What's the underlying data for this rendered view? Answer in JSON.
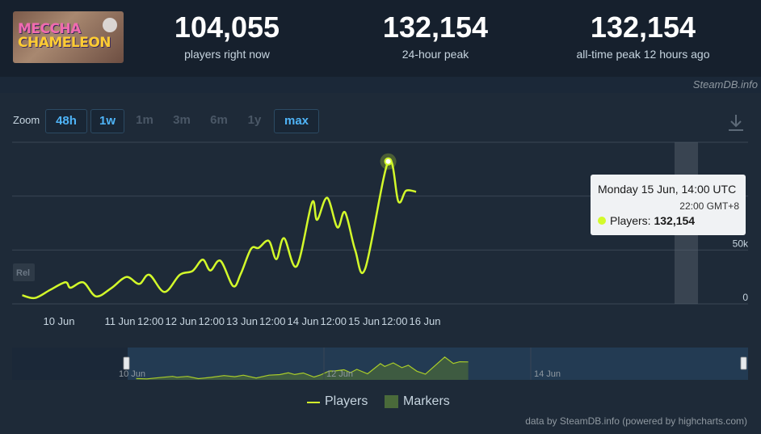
{
  "header": {
    "logo_line1": "MECCHA",
    "logo_line2": "CHAMELEON",
    "stats": [
      {
        "value": "104,055",
        "label": "players right now"
      },
      {
        "value": "132,154",
        "label": "24-hour peak"
      },
      {
        "value": "132,154",
        "label": "all-time peak 12 hours ago"
      }
    ],
    "credit": "SteamDB.info"
  },
  "zoom": {
    "label": "Zoom",
    "buttons": [
      {
        "label": "48h",
        "active": true
      },
      {
        "label": "1w",
        "active": true
      },
      {
        "label": "1m",
        "active": false
      },
      {
        "label": "3m",
        "active": false
      },
      {
        "label": "6m",
        "active": false
      },
      {
        "label": "1y",
        "active": false
      },
      {
        "label": "max",
        "active": true
      }
    ]
  },
  "chart_data": {
    "type": "line",
    "series": [
      {
        "name": "Players",
        "color": "#d3fa2a"
      }
    ],
    "x_tick_labels": [
      "10 Jun",
      "11 Jun",
      "12:00",
      "12 Jun",
      "12:00",
      "13 Jun",
      "12:00",
      "14 Jun",
      "12:00",
      "15 Jun",
      "12:00",
      "16 Jun"
    ],
    "y_tick_labels": [
      "0",
      "50k"
    ],
    "ylim": [
      0,
      150000
    ],
    "points_time_ymd_hh": [
      [
        "Jun 9 14:00",
        8000
      ],
      [
        "Jun 9 19:00",
        5500
      ],
      [
        "Jun 10 01:00",
        13000
      ],
      [
        "Jun 10 07:00",
        20000
      ],
      [
        "Jun 10 09:00",
        15000
      ],
      [
        "Jun 10 14:00",
        20000
      ],
      [
        "Jun 10 19:00",
        7000
      ],
      [
        "Jun 11 01:00",
        14500
      ],
      [
        "Jun 11 07:00",
        25000
      ],
      [
        "Jun 11 12:00",
        18500
      ],
      [
        "Jun 11 16:00",
        27000
      ],
      [
        "Jun 11 22:00",
        11000
      ],
      [
        "Jun 12 04:00",
        27000
      ],
      [
        "Jun 12 09:00",
        30500
      ],
      [
        "Jun 12 13:00",
        41000
      ],
      [
        "Jun 12 16:00",
        31000
      ],
      [
        "Jun 12 20:00",
        40000
      ],
      [
        "Jun 13 01:00",
        16500
      ],
      [
        "Jun 13 04:00",
        28000
      ],
      [
        "Jun 13 08:00",
        51000
      ],
      [
        "Jun 13 11:00",
        52000
      ],
      [
        "Jun 13 15:00",
        58500
      ],
      [
        "Jun 13 18:00",
        41500
      ],
      [
        "Jun 13 21:00",
        61000
      ],
      [
        "Jun 14 02:00",
        35000
      ],
      [
        "Jun 14 08:00",
        94000
      ],
      [
        "Jun 14 10:00",
        78000
      ],
      [
        "Jun 14 14:00",
        98500
      ],
      [
        "Jun 14 18:00",
        71000
      ],
      [
        "Jun 14 21:00",
        85000
      ],
      [
        "Jun 15 01:00",
        50000
      ],
      [
        "Jun 15 05:00",
        33000
      ],
      [
        "Jun 15 14:00",
        132154
      ],
      [
        "Jun 15 18:00",
        95000
      ],
      [
        "Jun 15 21:00",
        105000
      ],
      [
        "Jun 16 01:00",
        104055
      ]
    ],
    "tooltip": {
      "date": "Monday 15 Jun, 14:00 UTC",
      "local": "22:00 GMT+8",
      "series_label": "Players:",
      "value": "132,154"
    },
    "navigator_labels": [
      "10 Jun",
      "12 Jun",
      "14 Jun"
    ],
    "rel_label": "Rel",
    "legend": [
      {
        "label": "Players"
      },
      {
        "label": "Markers"
      }
    ],
    "credit": "data by SteamDB.info (powered by highcharts.com)"
  }
}
